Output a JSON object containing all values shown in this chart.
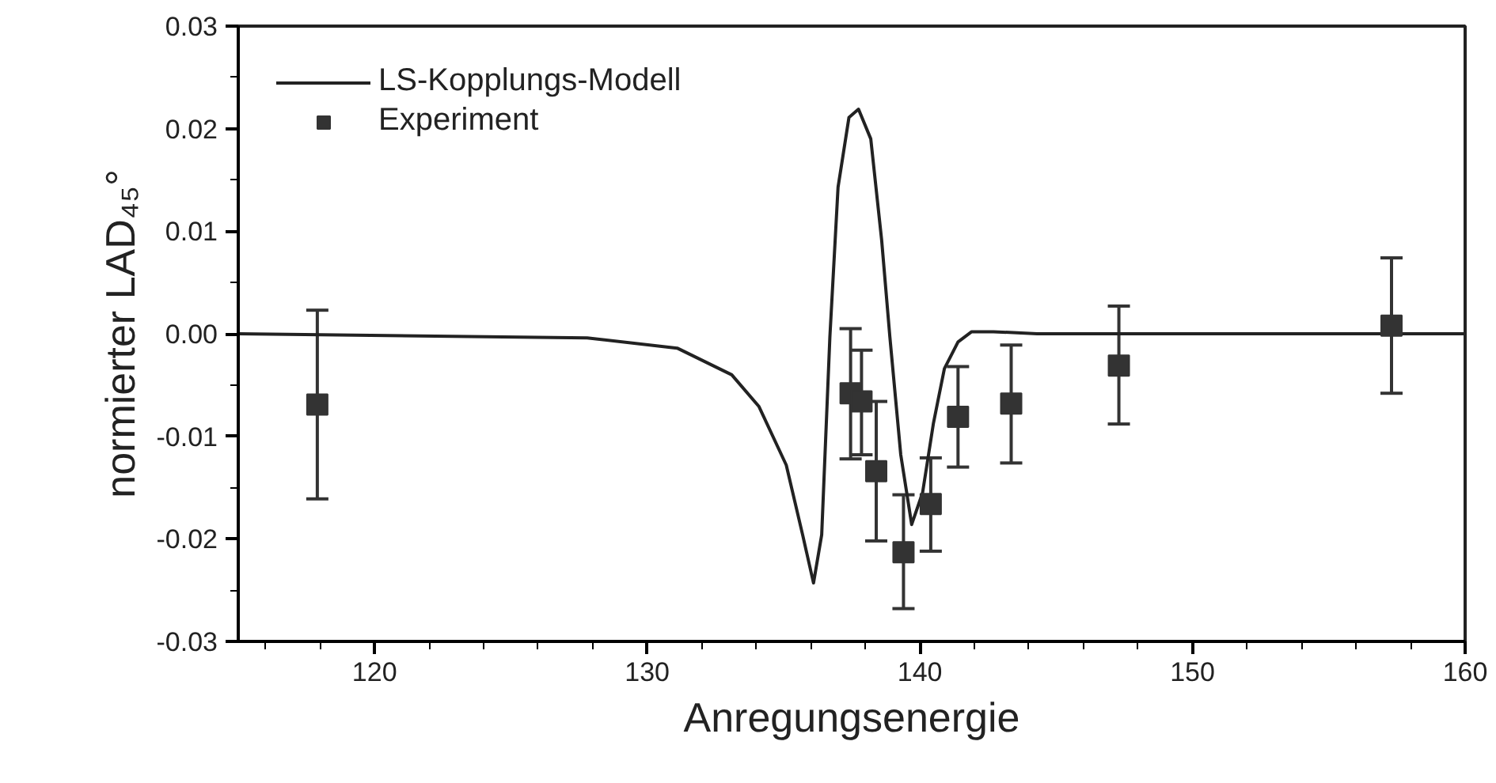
{
  "chart_data": {
    "type": "line",
    "xlabel": "Anregungsenergie",
    "ylabel": "normierter LAD₄₅°",
    "xlim": [
      115,
      160
    ],
    "xticks": [
      120,
      130,
      140,
      150,
      160
    ],
    "ylim": [
      -0.03,
      0.03
    ],
    "yticks": [
      {
        "value": -0.03,
        "label": "-0.03"
      },
      {
        "value": -0.02,
        "label": "-0.02"
      },
      {
        "value": -0.01,
        "label": "-0.01"
      },
      {
        "value": 0,
        "label": "0.00"
      },
      {
        "value": 0.01,
        "label": "0.01"
      },
      {
        "value": 0.02,
        "label": "0.02"
      },
      {
        "value": 0.03,
        "label": "0.03"
      }
    ],
    "grid": false,
    "legend": "top left",
    "series": [
      {
        "name": "LS-Kopplungs-Modell",
        "color": "#222222",
        "line_style": "solid",
        "marker": "none",
        "x": [
          115,
          127.8,
          131.1,
          133.1,
          134.1,
          135.1,
          135.7,
          136.1,
          136.4,
          136.7,
          137.0,
          137.4,
          137.75,
          138.2,
          138.6,
          138.9,
          139.3,
          139.7,
          140.1,
          140.5,
          140.9,
          141.4,
          141.9,
          142.7,
          144.3,
          160
        ],
        "values": [
          0,
          -0.0004,
          -0.0014,
          -0.004,
          -0.0071,
          -0.0128,
          -0.0196,
          -0.0243,
          -0.0196,
          -0.0003,
          0.0143,
          0.0211,
          0.0219,
          0.019,
          0.0091,
          -0.0003,
          -0.0118,
          -0.0186,
          -0.0155,
          -0.0087,
          -0.0034,
          -0.0008,
          0.0002,
          0.0002,
          0,
          0
        ]
      },
      {
        "name": "Experiment",
        "type": "scatter",
        "color": "#333333",
        "marker": "square",
        "x": [
          117.9,
          137.46,
          137.86,
          138.4,
          139.4,
          140.4,
          141.4,
          143.35,
          147.3,
          157.3
        ],
        "values": [
          -0.0069,
          -0.0058,
          -0.0066,
          -0.0134,
          -0.0213,
          -0.0166,
          -0.0081,
          -0.0068,
          -0.0031,
          0.0008
        ],
        "errors": [
          [
            -0.0161,
            0.0023
          ],
          [
            -0.0122,
            0.0005
          ],
          [
            -0.0118,
            -0.0016
          ],
          [
            -0.0202,
            -0.0066
          ],
          [
            -0.0268,
            -0.0157
          ],
          [
            -0.0212,
            -0.0121
          ],
          [
            -0.013,
            -0.0032
          ],
          [
            -0.0126,
            -0.0011
          ],
          [
            -0.0088,
            0.0027
          ],
          [
            -0.0058,
            0.0074
          ]
        ]
      }
    ]
  }
}
